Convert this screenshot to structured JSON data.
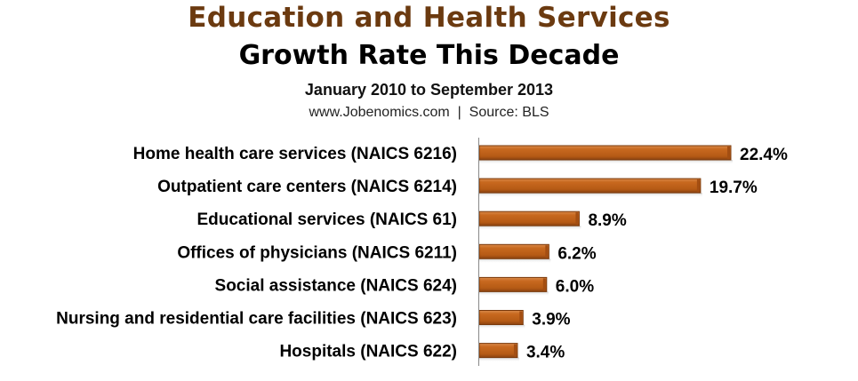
{
  "chart_data": {
    "type": "bar",
    "orientation": "horizontal",
    "title": "Education and Health Services",
    "subtitle": "Growth Rate This Decade",
    "period": "January  2010 to September 2013",
    "source": "www.Jobenomics.com  |  Source: BLS",
    "categories": [
      "Home health care services (NAICS 6216)",
      "Outpatient care centers (NAICS 6214)",
      "Educational services (NAICS 61)",
      "Offices of physicians (NAICS 6211)",
      "Social assistance (NAICS 624)",
      "Nursing and residential care facilities (NAICS 623)",
      "Hospitals (NAICS 622)"
    ],
    "values": [
      22.4,
      19.7,
      8.9,
      6.2,
      6.0,
      3.9,
      3.4
    ],
    "data_labels": [
      "22.4%",
      "19.7%",
      "8.9%",
      "6.2%",
      "6.0%",
      "3.9%",
      "3.4%"
    ],
    "xlim": [
      0,
      22.4
    ],
    "unit": "%",
    "grid": false,
    "legend": "none",
    "colors": {
      "bar": "#C0621A",
      "bar_edge": "#7A3A0C",
      "title": "#6B3A10"
    }
  }
}
